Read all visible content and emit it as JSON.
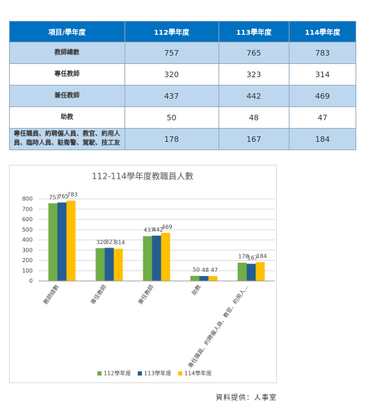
{
  "table": {
    "header": [
      "項目/學年度",
      "112學年度",
      "113學年度",
      "114學年度"
    ],
    "rows": [
      [
        "教師總數",
        "757",
        "765",
        "783"
      ],
      [
        "專任教師",
        "320",
        "323",
        "314"
      ],
      [
        "兼任教師",
        "437",
        "442",
        "469"
      ],
      [
        "助教",
        "50",
        "48",
        "47"
      ],
      [
        "專任職員、約聘僱人員、教官、約用人員、臨時人員、駐衛警、駕駛、技工友",
        "178",
        "167",
        "184"
      ]
    ]
  },
  "chart_data": {
    "type": "bar",
    "title": "112-114學年度教職員人數",
    "categories": [
      "教師總數",
      "專任教師",
      "兼任教師",
      "助教",
      "專任職員、約聘僱人員、教官、約用人..."
    ],
    "series": [
      {
        "name": "112學年度",
        "color": "#70ad47",
        "values": [
          757,
          320,
          437,
          50,
          178
        ]
      },
      {
        "name": "113學年度",
        "color": "#255e91",
        "values": [
          765,
          323,
          442,
          48,
          167
        ]
      },
      {
        "name": "114學年度",
        "color": "#ffc000",
        "values": [
          783,
          314,
          469,
          47,
          184
        ]
      }
    ],
    "ylim": [
      0,
      800
    ],
    "yticks": [
      0,
      100,
      200,
      300,
      400,
      500,
      600,
      700,
      800
    ],
    "grid": true,
    "legend": "bottom"
  },
  "note": "資料提供：人事室"
}
